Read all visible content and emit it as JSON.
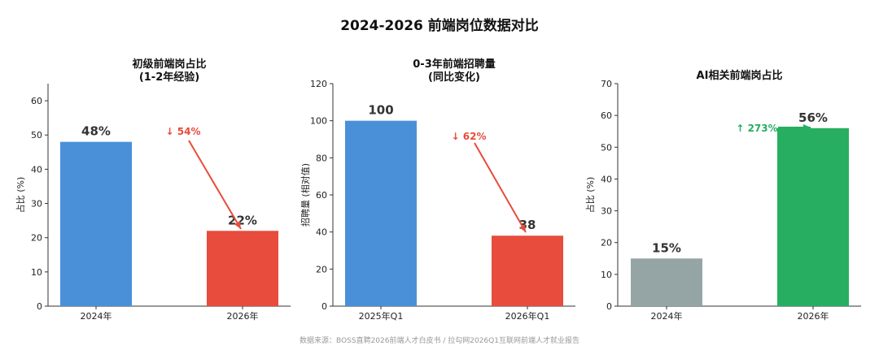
{
  "title": "2024-2026 前端岗位数据对比",
  "source": "数据来源：BOSS直聘2026前端人才白皮书 / 拉勾网2026Q1互联网前端人才就业报告",
  "chart_data": [
    {
      "type": "bar",
      "title_lines": [
        "初级前端岗占比",
        "(1-2年经验)"
      ],
      "categories": [
        "2024年",
        "2026年"
      ],
      "values": [
        48,
        22
      ],
      "value_labels": [
        "48%",
        "22%"
      ],
      "colors": [
        "#4A90D9",
        "#E74C3C"
      ],
      "ylabel": "占比 (%)",
      "ylim": [
        0,
        65
      ],
      "yticks": [
        0,
        10,
        20,
        30,
        40,
        50,
        60
      ],
      "annotation": {
        "text": "↓ 54%",
        "color": "#E74C3C"
      }
    },
    {
      "type": "bar",
      "title_lines": [
        "0-3年前端招聘量",
        "(同比变化)"
      ],
      "categories": [
        "2025年Q1",
        "2026年Q1"
      ],
      "values": [
        100,
        38
      ],
      "value_labels": [
        "100",
        "38"
      ],
      "colors": [
        "#4A90D9",
        "#E74C3C"
      ],
      "ylabel": "招聘量 (相对值)",
      "ylim": [
        0,
        120
      ],
      "yticks": [
        0,
        20,
        40,
        60,
        80,
        100,
        120
      ],
      "annotation": {
        "text": "↓ 62%",
        "color": "#E74C3C"
      }
    },
    {
      "type": "bar",
      "title_lines": [
        "AI相关前端岗占比"
      ],
      "categories": [
        "2024年",
        "2026年"
      ],
      "values": [
        15,
        56
      ],
      "value_labels": [
        "15%",
        "56%"
      ],
      "colors": [
        "#95A5A6",
        "#27AE60"
      ],
      "ylabel": "占比 (%)",
      "ylim": [
        0,
        70
      ],
      "yticks": [
        0,
        10,
        20,
        30,
        40,
        50,
        60,
        70
      ],
      "annotation": {
        "text": "↑ 273%",
        "color": "#27AE60"
      }
    }
  ]
}
